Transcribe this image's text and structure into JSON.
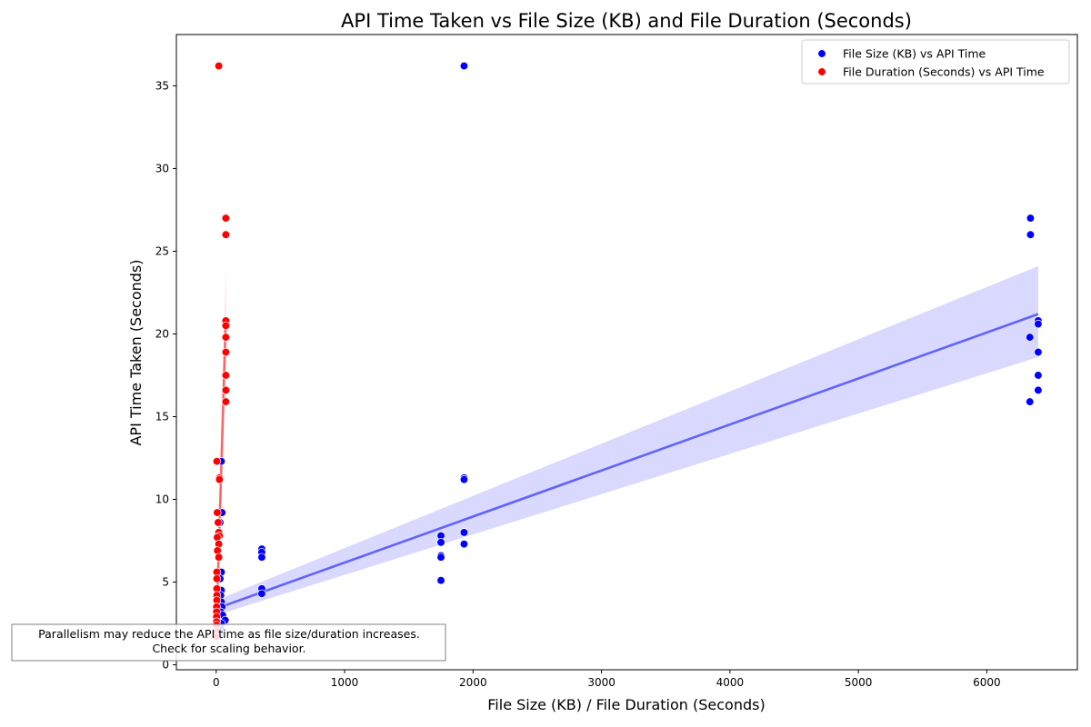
{
  "chart_data": {
    "type": "scatter",
    "title": "API Time Taken vs File Size (KB) and File Duration (Seconds)",
    "xlabel": "File Size (KB) / File Duration (Seconds)",
    "ylabel": "API Time Taken (Seconds)",
    "xlim": [
      -310,
      6705
    ],
    "ylim": [
      -0.3,
      38.1
    ],
    "xticks": [
      0,
      1000,
      2000,
      3000,
      4000,
      5000,
      6000
    ],
    "yticks": [
      0,
      5,
      10,
      15,
      20,
      25,
      30,
      35
    ],
    "grid": false,
    "legend_position": "top-right",
    "annotation": {
      "lines": [
        "Parallelism may reduce the API time as file size/duration increases.",
        "Check for scaling behavior."
      ]
    },
    "series": [
      {
        "name": "File Size (KB) vs API Time",
        "color": "#0000ff",
        "points": [
          [
            6340,
            27.0
          ],
          [
            6340,
            26.0
          ],
          [
            6400,
            20.8
          ],
          [
            6400,
            20.6
          ],
          [
            6335,
            19.8
          ],
          [
            6400,
            18.9
          ],
          [
            6400,
            17.5
          ],
          [
            6400,
            16.6
          ],
          [
            6335,
            15.9
          ],
          [
            1930,
            36.2
          ],
          [
            1930,
            11.3
          ],
          [
            1930,
            11.2
          ],
          [
            1930,
            8.0
          ],
          [
            1930,
            7.3
          ],
          [
            1750,
            7.8
          ],
          [
            1750,
            7.4
          ],
          [
            1750,
            6.6
          ],
          [
            1750,
            6.5
          ],
          [
            1750,
            5.1
          ],
          [
            355,
            7.0
          ],
          [
            355,
            6.8
          ],
          [
            355,
            6.5
          ],
          [
            355,
            4.6
          ],
          [
            355,
            4.3
          ],
          [
            40,
            12.3
          ],
          [
            45,
            9.2
          ],
          [
            30,
            8.6
          ],
          [
            40,
            5.6
          ],
          [
            30,
            5.2
          ],
          [
            40,
            4.5
          ],
          [
            35,
            4.2
          ],
          [
            40,
            3.8
          ],
          [
            45,
            3.5
          ],
          [
            35,
            3.2
          ],
          [
            50,
            3.0
          ],
          [
            70,
            2.7
          ],
          [
            40,
            2.5
          ],
          [
            30,
            2.2
          ],
          [
            25,
            2.0
          ],
          [
            20,
            1.7
          ]
        ],
        "fit": {
          "x": [
            0,
            6400
          ],
          "y": [
            3.4,
            21.2
          ],
          "ci_low": [
            3.0,
            18.6
          ],
          "ci_high": [
            3.9,
            24.1
          ]
        }
      },
      {
        "name": "File Duration (Seconds) vs API Time",
        "color": "#ff0000",
        "points": [
          [
            20,
            36.2
          ],
          [
            75,
            27.0
          ],
          [
            75,
            26.0
          ],
          [
            75,
            20.8
          ],
          [
            75,
            20.5
          ],
          [
            75,
            19.8
          ],
          [
            75,
            18.9
          ],
          [
            75,
            17.5
          ],
          [
            75,
            16.6
          ],
          [
            75,
            15.9
          ],
          [
            5,
            12.3
          ],
          [
            25,
            11.3
          ],
          [
            25,
            11.2
          ],
          [
            8,
            9.2
          ],
          [
            15,
            8.6
          ],
          [
            20,
            8.0
          ],
          [
            25,
            7.8
          ],
          [
            8,
            7.7
          ],
          [
            20,
            7.3
          ],
          [
            10,
            6.9
          ],
          [
            20,
            6.5
          ],
          [
            5,
            5.6
          ],
          [
            5,
            5.2
          ],
          [
            5,
            4.6
          ],
          [
            5,
            4.2
          ],
          [
            5,
            3.9
          ],
          [
            3,
            3.5
          ],
          [
            3,
            3.2
          ],
          [
            3,
            2.9
          ],
          [
            3,
            2.6
          ],
          [
            3,
            2.4
          ],
          [
            3,
            2.0
          ],
          [
            3,
            1.7
          ]
        ],
        "fit": {
          "x": [
            0,
            75
          ],
          "y": [
            1.8,
            21.0
          ],
          "ci_low": [
            1.2,
            18.2
          ],
          "ci_high": [
            2.4,
            24.1
          ]
        }
      }
    ]
  }
}
